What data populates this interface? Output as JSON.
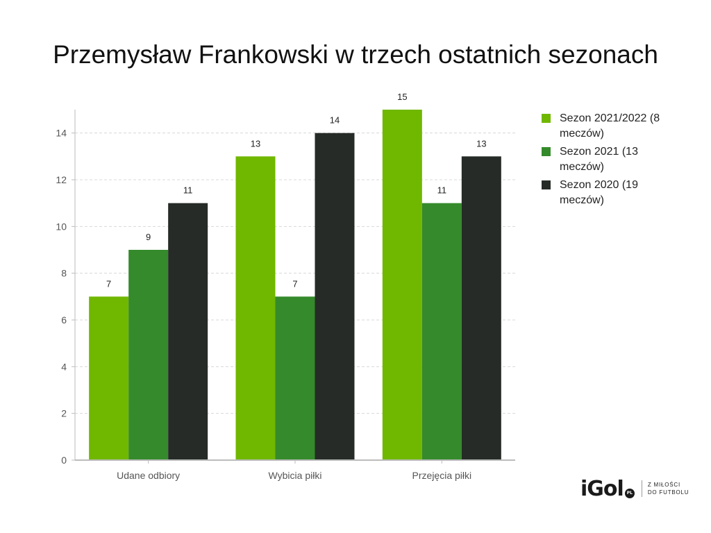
{
  "title": "Przemysław Frankowski w trzech ostatnich sezonach",
  "brand": {
    "logo": "iGol",
    "badge": "PL",
    "tagline_1": "Z MIŁOŚCI",
    "tagline_2": "DO FUTBOLU"
  },
  "colors": {
    "series1": "#70b700",
    "series2": "#358a2b",
    "series3": "#262b27",
    "grid": "#d8d8d8",
    "axis": "#bbbbbb"
  },
  "chart_data": {
    "type": "bar",
    "categories": [
      "Udane odbiory",
      "Wybicia piłki",
      "Przejęcia piłki"
    ],
    "series": [
      {
        "name": "Sezon 2021/2022 (8 meczów)",
        "values": [
          7,
          13,
          15
        ]
      },
      {
        "name": "Sezon 2021 (13 meczów)",
        "values": [
          9,
          7,
          11
        ]
      },
      {
        "name": "Sezon 2020 (19 meczów)",
        "values": [
          11,
          14,
          13
        ]
      }
    ],
    "yticks": [
      0,
      2,
      4,
      6,
      8,
      10,
      12,
      14
    ],
    "ylim": [
      0,
      15
    ],
    "grid": true,
    "legend_position": "right"
  }
}
